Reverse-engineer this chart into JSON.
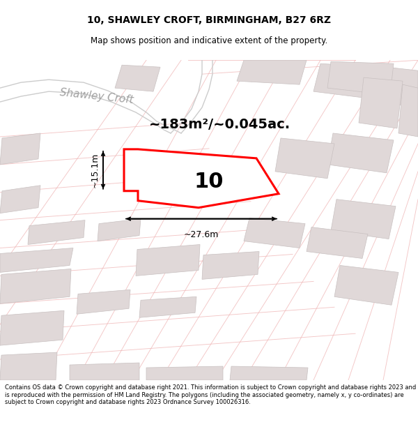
{
  "title_line1": "10, SHAWLEY CROFT, BIRMINGHAM, B27 6RZ",
  "title_line2": "Map shows position and indicative extent of the property.",
  "footer_text": "Contains OS data © Crown copyright and database right 2021. This information is subject to Crown copyright and database rights 2023 and is reproduced with the permission of HM Land Registry. The polygons (including the associated geometry, namely x, y co-ordinates) are subject to Crown copyright and database rights 2023 Ordnance Survey 100026316.",
  "area_label": "~183m²/~0.045ac.",
  "number_label": "10",
  "width_label": "~27.6m",
  "height_label": "~15.1m",
  "map_bg": "#ffffff",
  "property_fill": "#ffffff",
  "property_edge": "#ff0000",
  "road_stroke": "#f0b8b8",
  "building_fill": "#e0d8d8",
  "building_edge": "#c8c0c0",
  "title_fontsize": 10,
  "subtitle_fontsize": 8.5,
  "area_fontsize": 14,
  "number_fontsize": 22,
  "dim_fontsize": 9,
  "street_fontsize": 11,
  "footer_fontsize": 6.0
}
